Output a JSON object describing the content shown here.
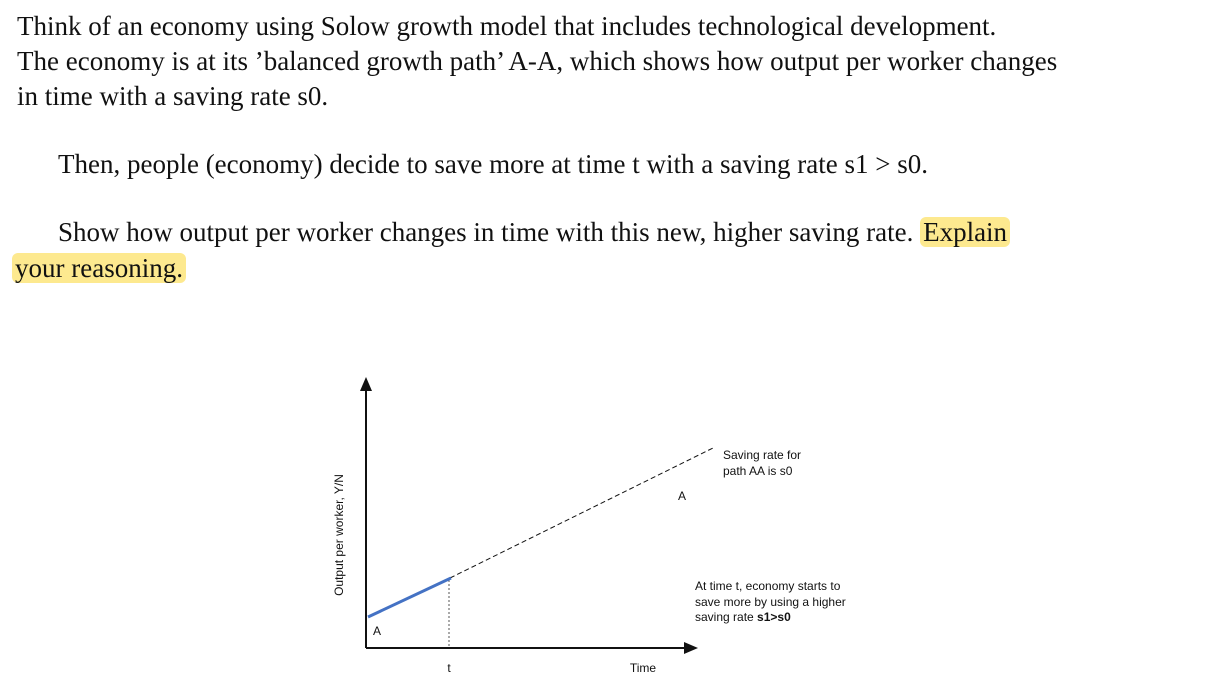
{
  "question": {
    "lines": [
      "Think of an economy using Solow growth model that includes technological development.",
      "The economy is at its ’balanced growth path’ A-A, which shows how output per worker changes",
      "in time with a saving rate s0."
    ]
  },
  "scenario": "Then, people (economy) decide to save more at time t with a saving rate s1 > s0.",
  "task": {
    "text": "Show how output per worker changes in time with this new, higher saving rate.",
    "highlight": [
      "Explain",
      "your reasoning."
    ]
  },
  "diagram": {
    "y_label": "Output per worker, Y/N",
    "x_label": "Time",
    "t_label": "t",
    "start_label": "A",
    "end_label": "A",
    "note_s0": [
      "Saving rate for",
      "path AA is s0"
    ],
    "note_s1": [
      "At time t, economy starts to",
      "save more by using a higher",
      "saving rate"
    ],
    "note_s1_bold": "s1>s0"
  }
}
